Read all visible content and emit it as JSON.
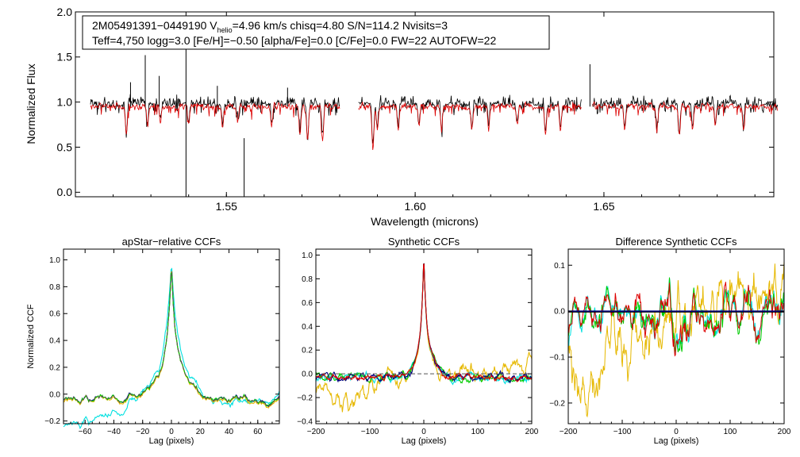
{
  "chart_data": [
    {
      "type": "line",
      "panel": "spectrum",
      "title": "",
      "info_line1_prefix": "2M05491391−0449190  V",
      "info_line1_sub": "helio",
      "info_line1_suffix": "=4.96 km/s  chisq=4.80  S/N=114.2  Nvisits=3",
      "info_line2": "Teff=4,750 logg=3.0 [Fe/H]=−0.50 [alpha/Fe]=0.0 [C/Fe]=0.0 FW=22 AUTOFW=22",
      "xlabel": "Wavelength (microns)",
      "ylabel": "Normalized Flux",
      "xlim": [
        1.51,
        1.695
      ],
      "ylim": [
        -0.05,
        2.0
      ],
      "xticks": [
        1.55,
        1.6,
        1.65
      ],
      "xtick_labels": [
        "1.55",
        "1.60",
        "1.65"
      ],
      "yticks": [
        0.0,
        0.5,
        1.0,
        1.5,
        2.0
      ],
      "ytick_labels": [
        "0.0",
        "0.5",
        "1.0",
        "1.5",
        "2.0"
      ],
      "chip_ranges": [
        [
          1.514,
          1.58
        ],
        [
          1.585,
          1.644
        ],
        [
          1.647,
          1.696
        ]
      ],
      "series": [
        {
          "name": "observed",
          "color": "#000000",
          "continuum": 0.98
        },
        {
          "name": "model",
          "color": "#dd0000",
          "continuum": 0.95
        }
      ],
      "spikes": [
        {
          "x": 1.5393,
          "y": 2.0,
          "low": -0.05
        },
        {
          "x": 1.5547,
          "y": 0.6,
          "low": -0.05
        },
        {
          "x": 1.5246,
          "y": 1.22
        },
        {
          "x": 1.5285,
          "y": 1.52
        },
        {
          "x": 1.5322,
          "y": 1.29
        },
        {
          "x": 1.5476,
          "y": 1.18
        },
        {
          "x": 1.5662,
          "y": 1.16
        },
        {
          "x": 1.6463,
          "y": 1.42
        }
      ],
      "absorption_lines": [
        {
          "x": 1.5235,
          "depth": 0.33
        },
        {
          "x": 1.5291,
          "depth": 0.2
        },
        {
          "x": 1.5325,
          "depth": 0.18
        },
        {
          "x": 1.54,
          "depth": 0.2
        },
        {
          "x": 1.549,
          "depth": 0.24
        },
        {
          "x": 1.553,
          "depth": 0.18
        },
        {
          "x": 1.562,
          "depth": 0.22
        },
        {
          "x": 1.5695,
          "depth": 0.3
        },
        {
          "x": 1.5715,
          "depth": 0.38
        },
        {
          "x": 1.5755,
          "depth": 0.38
        },
        {
          "x": 1.5888,
          "depth": 0.47
        },
        {
          "x": 1.59,
          "depth": 0.28
        },
        {
          "x": 1.5955,
          "depth": 0.25
        },
        {
          "x": 1.601,
          "depth": 0.22
        },
        {
          "x": 1.607,
          "depth": 0.28
        },
        {
          "x": 1.615,
          "depth": 0.27
        },
        {
          "x": 1.6195,
          "depth": 0.26
        },
        {
          "x": 1.627,
          "depth": 0.23
        },
        {
          "x": 1.6345,
          "depth": 0.35
        },
        {
          "x": 1.6385,
          "depth": 0.3
        },
        {
          "x": 1.6555,
          "depth": 0.25
        },
        {
          "x": 1.664,
          "depth": 0.28
        },
        {
          "x": 1.67,
          "depth": 0.35
        },
        {
          "x": 1.6735,
          "depth": 0.25
        },
        {
          "x": 1.6795,
          "depth": 0.22
        },
        {
          "x": 1.687,
          "depth": 0.24
        }
      ]
    },
    {
      "type": "line",
      "panel": "ccf1",
      "title": "apStar−relative CCFs",
      "xlabel": "Lag (pixels)",
      "ylabel": "Normalized CCF",
      "xlim": [
        -75,
        75
      ],
      "ylim": [
        -0.22,
        1.08
      ],
      "xticks": [
        -60,
        -40,
        -20,
        0,
        20,
        40,
        60
      ],
      "xtick_labels": [
        "−60",
        "−40",
        "−20",
        "0",
        "20",
        "40",
        "60"
      ],
      "yticks": [
        -0.2,
        0.0,
        0.2,
        0.4,
        0.6,
        0.8,
        1.0
      ],
      "ytick_labels": [
        "−0.2",
        "0.0",
        "0.2",
        "0.4",
        "0.6",
        "0.8",
        "1.0"
      ],
      "series": [
        {
          "name": "cyan",
          "color": "#00e0e0",
          "width": 12,
          "base": -0.12,
          "tilt": 0.0015,
          "peak": 1.0
        },
        {
          "name": "navy",
          "color": "#000080",
          "width": 7,
          "base": -0.04,
          "tilt": 0,
          "peak": 1.0
        },
        {
          "name": "yellow",
          "color": "#e6b800",
          "width": 7,
          "base": -0.05,
          "tilt": 0,
          "peak": 1.0
        },
        {
          "name": "green",
          "color": "#00cc00",
          "width": 7,
          "base": -0.04,
          "tilt": 0,
          "peak": 1.0
        }
      ],
      "dashed_model": {
        "color": "#555555",
        "width": 7,
        "base": -0.04,
        "peak": 1.0
      }
    },
    {
      "type": "line",
      "panel": "ccf2",
      "title": "Synthetic CCFs",
      "xlabel": "Lag (pixels)",
      "ylabel": "",
      "xlim": [
        -200,
        200
      ],
      "ylim": [
        -0.42,
        1.05
      ],
      "xticks": [
        -200,
        -100,
        0,
        100,
        200
      ],
      "xtick_labels": [
        "−200",
        "−100",
        "0",
        "100",
        "200"
      ],
      "yticks": [
        -0.4,
        -0.2,
        0.0,
        0.2,
        0.4,
        0.6,
        0.8,
        1.0
      ],
      "ytick_labels": [
        "−0.4",
        "−0.2",
        "0.0",
        "0.2",
        "0.4",
        "0.6",
        "0.8",
        "1.0"
      ],
      "dashed_zero": {
        "color": "#555555"
      },
      "series": [
        {
          "name": "yellow",
          "color": "#e6b800",
          "noise": 0.09,
          "peak": 1.0
        },
        {
          "name": "cyan",
          "color": "#00e0e0",
          "noise": 0.04,
          "peak": 1.0
        },
        {
          "name": "green",
          "color": "#00cc00",
          "noise": 0.04,
          "peak": 1.0
        },
        {
          "name": "navy",
          "color": "#000080",
          "noise": 0.04,
          "peak": 1.0
        },
        {
          "name": "red",
          "color": "#dd0000",
          "noise": 0.03,
          "peak": 1.0
        }
      ]
    },
    {
      "type": "line",
      "panel": "ccf3",
      "title": "Difference Synthetic CCFs",
      "xlabel": "Lag (pixels)",
      "ylabel": "",
      "xlim": [
        -200,
        200
      ],
      "ylim": [
        -0.245,
        0.135
      ],
      "xticks": [
        -200,
        -100,
        0,
        100,
        200
      ],
      "xtick_labels": [
        "−200",
        "−100",
        "0",
        "100",
        "200"
      ],
      "yticks": [
        -0.2,
        -0.1,
        0.0,
        0.1
      ],
      "ytick_labels": [
        "−0.2",
        "−0.1",
        "0.0",
        "0.1"
      ],
      "zero_line": {
        "color": "#000080"
      },
      "series": [
        {
          "name": "yellow",
          "color": "#e6b800",
          "amp": 0.09
        },
        {
          "name": "cyan",
          "color": "#00e0e0",
          "amp": 0.045
        },
        {
          "name": "green",
          "color": "#00cc00",
          "amp": 0.045
        },
        {
          "name": "red",
          "color": "#dd0000",
          "amp": 0.04
        }
      ]
    }
  ]
}
